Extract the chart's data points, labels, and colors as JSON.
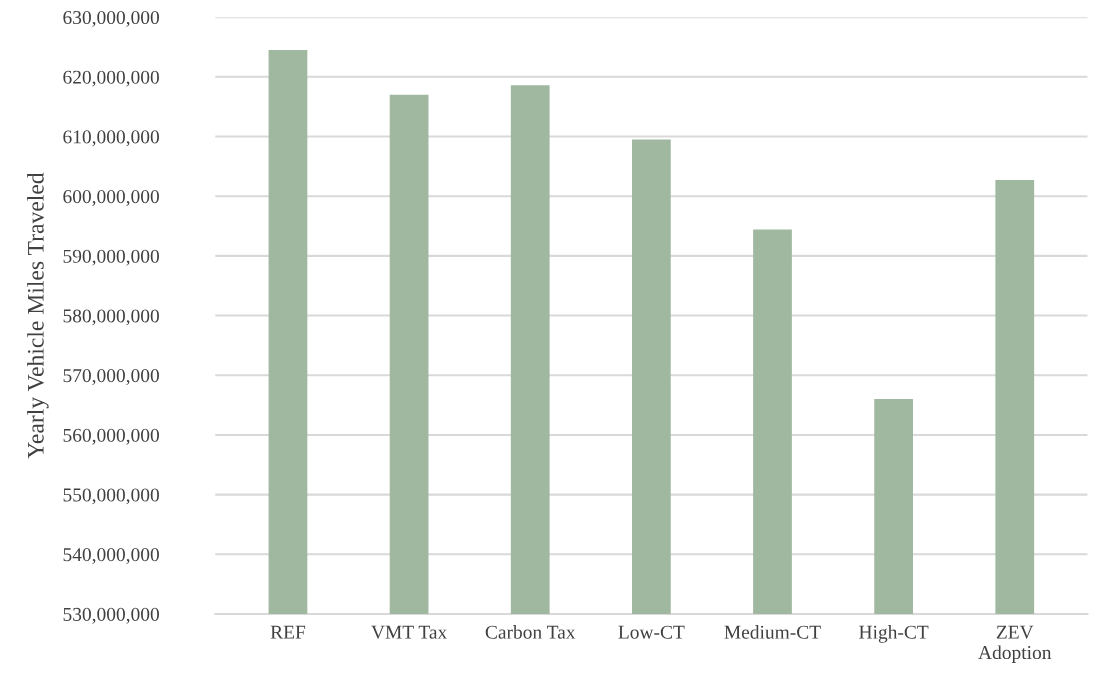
{
  "chart_data": {
    "type": "bar",
    "ylabel": "Yearly Vehicle Miles Traveled",
    "categories": [
      "REF",
      "VMT Tax",
      "Carbon Tax",
      "Low-CT",
      "Medium-CT",
      "High-CT",
      "ZEV\nAdoption"
    ],
    "values": [
      624500000,
      617000000,
      618600000,
      609500000,
      594400000,
      566000000,
      602700000
    ],
    "color": "#a1b8a0",
    "ylim": [
      530000000,
      630000000
    ],
    "yticks": [
      {
        "value": 530000000,
        "label": "530,000,000"
      },
      {
        "value": 540000000,
        "label": "540,000,000"
      },
      {
        "value": 550000000,
        "label": "550,000,000"
      },
      {
        "value": 560000000,
        "label": "560,000,000"
      },
      {
        "value": 570000000,
        "label": "570,000,000"
      },
      {
        "value": 580000000,
        "label": "580,000,000"
      },
      {
        "value": 590000000,
        "label": "590,000,000"
      },
      {
        "value": 600000000,
        "label": "600,000,000"
      },
      {
        "value": 610000000,
        "label": "610,000,000"
      },
      {
        "value": 620000000,
        "label": "620,000,000"
      },
      {
        "value": 630000000,
        "label": "630,000,000"
      }
    ],
    "grid": "y",
    "legend": false
  }
}
